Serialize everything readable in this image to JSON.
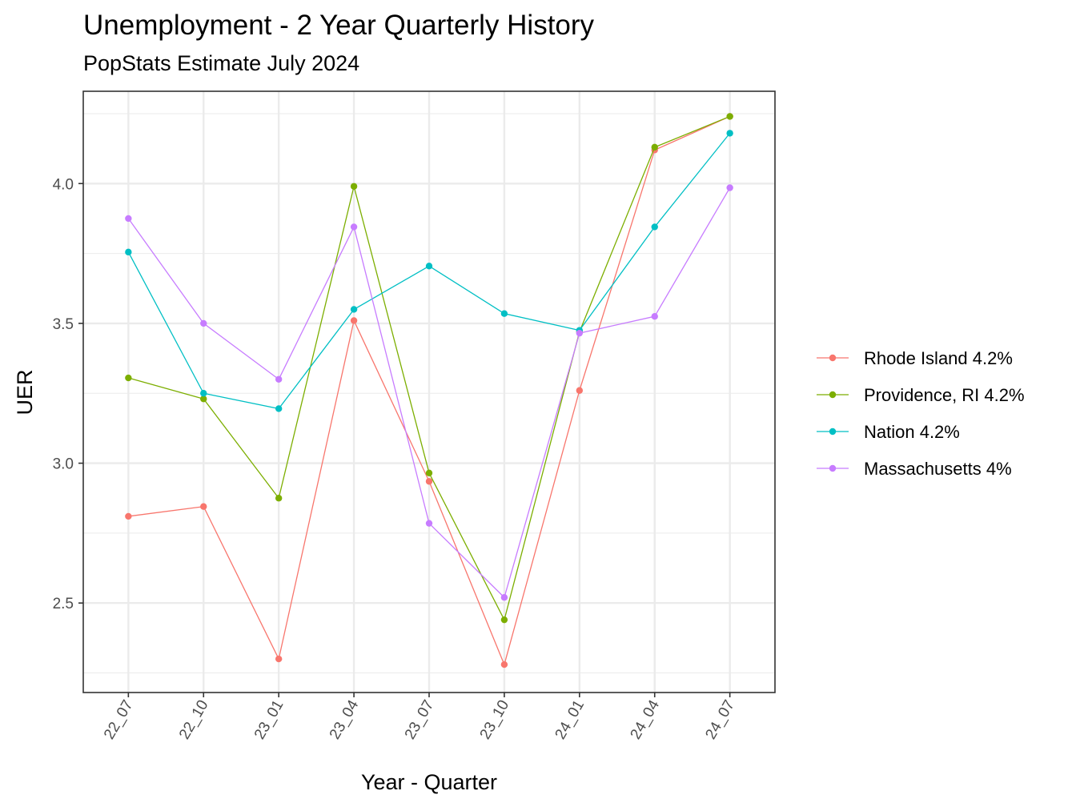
{
  "chart_data": {
    "type": "line",
    "title": "Unemployment - 2 Year Quarterly History",
    "subtitle": "PopStats Estimate July 2024",
    "xlabel": "Year - Quarter",
    "ylabel": "UER",
    "categories": [
      "22_07",
      "22_10",
      "23_01",
      "23_04",
      "23_07",
      "23_10",
      "24_01",
      "24_04",
      "24_07"
    ],
    "ylim": [
      2.18,
      4.33
    ],
    "yticks": [
      2.5,
      3.0,
      3.5,
      4.0
    ],
    "ytick_labels": [
      "2.5",
      "3.0",
      "3.5",
      "4.0"
    ],
    "grid": true,
    "legend_position": "right",
    "series": [
      {
        "name": "Rhode Island 4.2%",
        "color": "#F8766D",
        "values": [
          2.81,
          2.845,
          2.3,
          3.51,
          2.935,
          2.28,
          3.26,
          4.12,
          4.24
        ]
      },
      {
        "name": "Providence, RI 4.2%",
        "color": "#7CAE00",
        "values": [
          3.305,
          3.23,
          2.875,
          3.99,
          2.965,
          2.44,
          3.47,
          4.13,
          4.24
        ]
      },
      {
        "name": "Nation 4.2%",
        "color": "#00BFC4",
        "values": [
          3.755,
          3.25,
          3.195,
          3.55,
          3.705,
          3.535,
          3.475,
          3.845,
          4.18
        ]
      },
      {
        "name": "Massachusetts 4%",
        "color": "#C77CFF",
        "values": [
          3.875,
          3.5,
          3.3,
          3.845,
          2.785,
          2.52,
          3.465,
          3.525,
          3.985
        ]
      }
    ]
  }
}
